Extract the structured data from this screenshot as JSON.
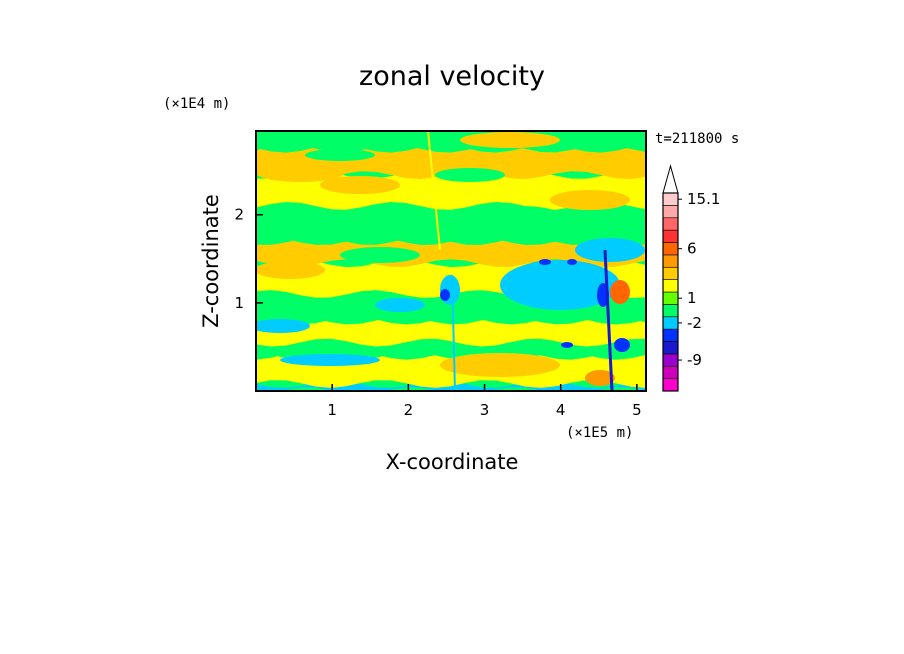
{
  "chart_data": {
    "type": "heatmap",
    "title": "zonal velocity",
    "xlabel": "X-coordinate",
    "ylabel": "Z-coordinate",
    "x_scale_label": "(×1E5 m)",
    "y_scale_label": "(×1E4 m)",
    "time_label": "t=211800 s",
    "xlim": [
      0,
      5.12
    ],
    "ylim": [
      0,
      2.95
    ],
    "x_ticks": [
      {
        "value": 1,
        "label": "1"
      },
      {
        "value": 2,
        "label": "2"
      },
      {
        "value": 3,
        "label": "3"
      },
      {
        "value": 4,
        "label": "4"
      },
      {
        "value": 5,
        "label": "5"
      }
    ],
    "y_ticks": [
      {
        "value": 1,
        "label": "1"
      },
      {
        "value": 2,
        "label": "2"
      }
    ],
    "colorbar": {
      "levels": [
        {
          "color": "#ff00cc"
        },
        {
          "color": "#cc00bb"
        },
        {
          "color": "#9900cc"
        },
        {
          "color": "#1a1acc"
        },
        {
          "color": "#0033ff"
        },
        {
          "color": "#00ccff"
        },
        {
          "color": "#00ff66"
        },
        {
          "color": "#66ff00"
        },
        {
          "color": "#ffff00"
        },
        {
          "color": "#ffcc00"
        },
        {
          "color": "#ff9900"
        },
        {
          "color": "#ff6600"
        },
        {
          "color": "#ff3333"
        },
        {
          "color": "#ff6666"
        },
        {
          "color": "#ffaaaa"
        },
        {
          "color": "#ffcccc"
        }
      ],
      "tick_labels": [
        {
          "level_index": 2,
          "label": "-9"
        },
        {
          "level_index": 5,
          "label": "-2"
        },
        {
          "level_index": 7,
          "label": "1"
        },
        {
          "level_index": 11,
          "label": "6"
        },
        {
          "level_index": 15,
          "label": "15.1"
        }
      ]
    },
    "layers": [
      {
        "band": [
          0.0,
          0.08
        ],
        "color": "#00ccff",
        "label": "bottom cyan"
      },
      {
        "band": [
          0.08,
          0.4
        ],
        "color": "#ffff00"
      },
      {
        "band": [
          0.4,
          0.55
        ],
        "color": "#00ff66"
      },
      {
        "band": [
          0.55,
          0.8
        ],
        "color": "#ffff00"
      },
      {
        "band": [
          0.8,
          1.1
        ],
        "color": "#00ff66"
      },
      {
        "band": [
          1.1,
          1.45
        ],
        "color": "#ffff00"
      },
      {
        "band": [
          1.45,
          1.7
        ],
        "color": "#ffcc00"
      },
      {
        "band": [
          1.7,
          2.1
        ],
        "color": "#00ff66"
      },
      {
        "band": [
          2.1,
          2.45
        ],
        "color": "#ffff00"
      },
      {
        "band": [
          2.45,
          2.75
        ],
        "color": "#ffcc00"
      },
      {
        "band": [
          2.75,
          2.95
        ],
        "color": "#00ff66"
      }
    ]
  }
}
